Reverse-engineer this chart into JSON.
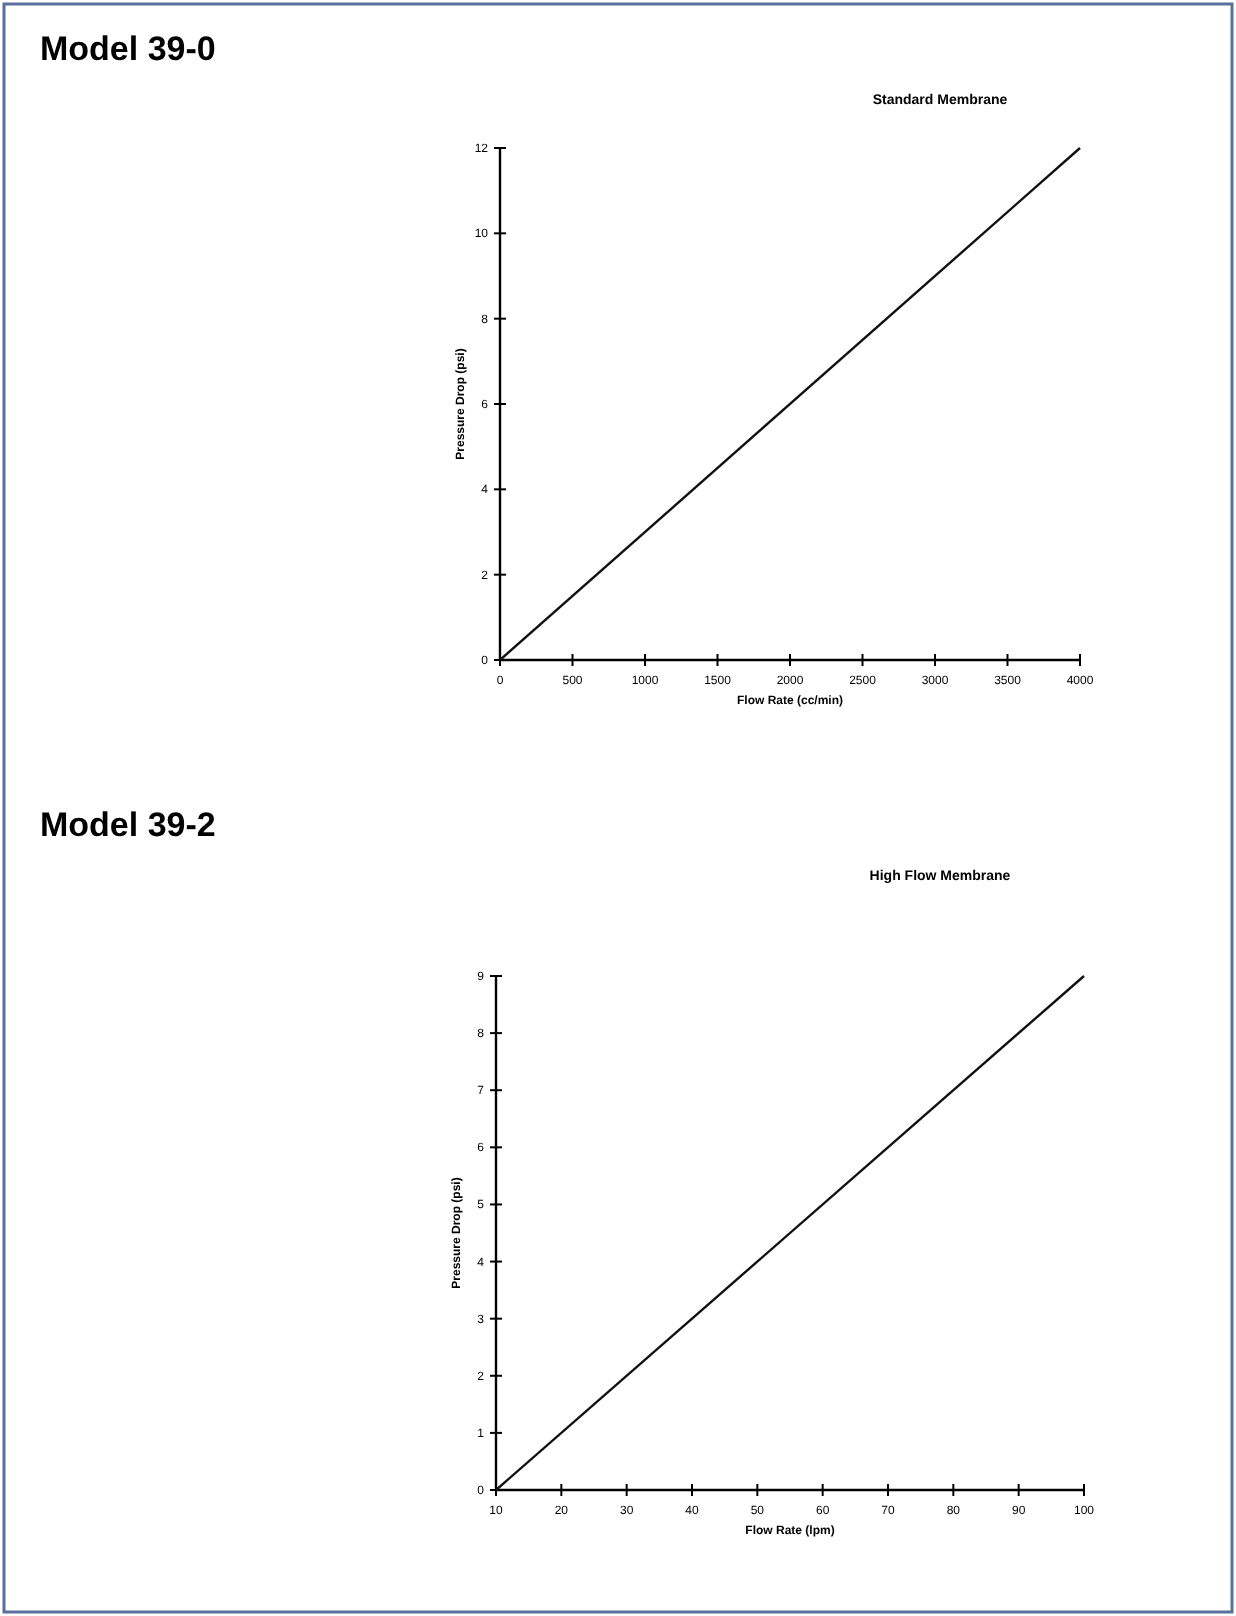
{
  "chart_data": [
    {
      "type": "line",
      "title": "Standard Membrane",
      "annotations": [
        "Model 39-0"
      ],
      "xlabel": "Flow Rate (cc/min)",
      "ylabel": "Pressure Drop (psi)",
      "x": [
        0,
        4000
      ],
      "series": [
        {
          "color": "#111111",
          "values": [
            0,
            12
          ]
        }
      ],
      "xlim": [
        0,
        4000
      ],
      "xticks": [
        0,
        500,
        1000,
        1500,
        2000,
        2500,
        3000,
        3500,
        4000
      ],
      "ylim": [
        0,
        12
      ],
      "yticks": [
        0,
        2,
        4,
        6,
        8,
        10,
        12
      ],
      "grid": false,
      "marker": "none",
      "line_style": "solid"
    },
    {
      "type": "line",
      "title": "High Flow Membrane",
      "annotations": [
        "Model 39-2"
      ],
      "xlabel": "Flow Rate (lpm)",
      "ylabel": "Pressure Drop (psi)",
      "x": [
        10,
        100
      ],
      "series": [
        {
          "color": "#111111",
          "values": [
            0,
            9
          ]
        }
      ],
      "xlim": [
        10,
        100
      ],
      "xticks": [
        10,
        20,
        30,
        40,
        50,
        60,
        70,
        80,
        90,
        100
      ],
      "ylim": [
        0,
        9
      ],
      "yticks": [
        0,
        1,
        2,
        3,
        4,
        5,
        6,
        7,
        8,
        9
      ],
      "grid": false,
      "marker": "none",
      "line_style": "solid"
    }
  ]
}
